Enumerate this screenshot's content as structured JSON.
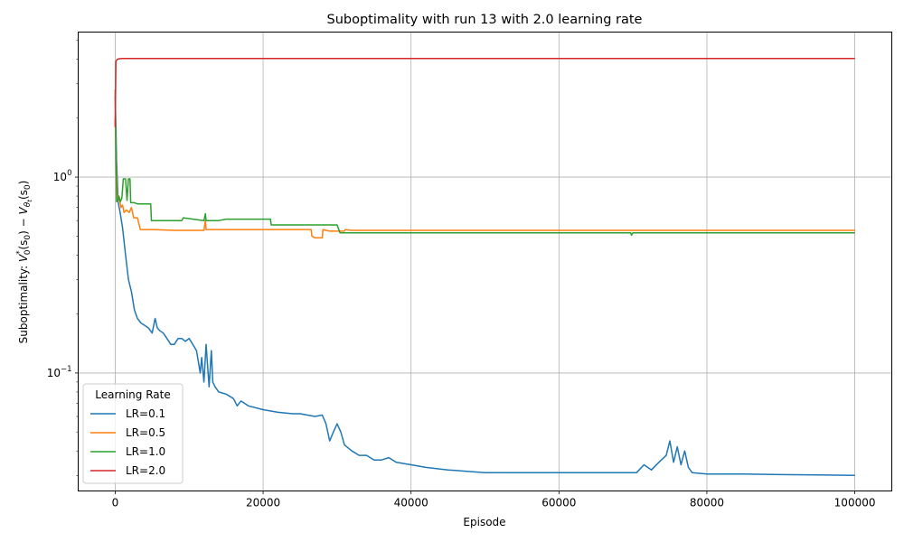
{
  "chart_data": {
    "type": "line",
    "title": "Suboptimality with run 13 with 2.0 learning rate",
    "xlabel": "Episode",
    "ylabel": "Suboptimality: V_0^*(s_0) − V_{θ_t}(s_0)",
    "ylabel_parts": {
      "prefix": "Suboptimality: ",
      "v": "V",
      "v_sup": "*",
      "v_sub": "0",
      "arg1": "(s",
      "arg1_sub": "0",
      "close1": ")",
      "minus": " − ",
      "v2": "V",
      "v2_sub": "θ",
      "v2_subsub": "t",
      "arg2": "(s",
      "arg2_sub": "0",
      "close2": ")"
    },
    "x_scale": "linear",
    "y_scale": "log",
    "xlim": [
      -5000,
      105000
    ],
    "ylim": [
      0.025,
      5.5
    ],
    "x_ticks": [
      0,
      20000,
      40000,
      60000,
      80000,
      100000
    ],
    "x_tick_labels": [
      "0",
      "20000",
      "40000",
      "60000",
      "80000",
      "100000"
    ],
    "y_ticks": [
      0.1,
      1
    ],
    "y_tick_labels": [
      {
        "base": "10",
        "exp": "−1"
      },
      {
        "base": "10",
        "exp": "0"
      }
    ],
    "grid": true,
    "legend": {
      "title": "Learning Rate",
      "placement": "lower-left"
    },
    "series": [
      {
        "name": "LR=0.1",
        "color": "#1f77b4",
        "x": [
          0,
          200,
          400,
          700,
          1000,
          1400,
          1800,
          2200,
          2600,
          3000,
          3500,
          4000,
          4500,
          5000,
          5400,
          5700,
          6000,
          6500,
          7000,
          7500,
          8000,
          8500,
          9000,
          9500,
          10000,
          10500,
          11000,
          11500,
          11700,
          12000,
          12300,
          12700,
          13000,
          13200,
          13500,
          14000,
          15000,
          16000,
          16500,
          17000,
          18000,
          20000,
          22000,
          24000,
          25000,
          26000,
          27000,
          28000,
          28500,
          29000,
          29500,
          30000,
          30500,
          31000,
          32000,
          33000,
          34000,
          35000,
          36000,
          37000,
          38000,
          40000,
          42000,
          45000,
          50000,
          55000,
          60000,
          65000,
          69000,
          70500,
          71500,
          72500,
          73500,
          74500,
          75000,
          75500,
          76000,
          76500,
          77000,
          77500,
          78000,
          80000,
          85000,
          90000,
          95000,
          100000
        ],
        "values": [
          2.6,
          1.2,
          0.75,
          0.65,
          0.55,
          0.4,
          0.3,
          0.26,
          0.21,
          0.19,
          0.18,
          0.175,
          0.17,
          0.16,
          0.19,
          0.17,
          0.165,
          0.16,
          0.15,
          0.14,
          0.14,
          0.15,
          0.15,
          0.145,
          0.15,
          0.14,
          0.13,
          0.1,
          0.12,
          0.09,
          0.14,
          0.085,
          0.13,
          0.09,
          0.085,
          0.08,
          0.078,
          0.074,
          0.068,
          0.072,
          0.068,
          0.065,
          0.063,
          0.062,
          0.062,
          0.061,
          0.06,
          0.061,
          0.055,
          0.045,
          0.05,
          0.055,
          0.05,
          0.043,
          0.04,
          0.038,
          0.038,
          0.036,
          0.036,
          0.037,
          0.035,
          0.034,
          0.033,
          0.032,
          0.031,
          0.031,
          0.031,
          0.031,
          0.031,
          0.031,
          0.034,
          0.032,
          0.035,
          0.038,
          0.045,
          0.035,
          0.042,
          0.034,
          0.04,
          0.033,
          0.031,
          0.0305,
          0.0305,
          0.0303,
          0.0302,
          0.03
        ]
      },
      {
        "name": "LR=0.5",
        "color": "#ff7f0e",
        "x": [
          0,
          150,
          300,
          500,
          800,
          1000,
          1200,
          1500,
          1900,
          2200,
          2500,
          3000,
          3200,
          3400,
          5000,
          8000,
          10000,
          12000,
          12200,
          12300,
          14000,
          20000,
          26500,
          26600,
          27000,
          28000,
          28100,
          28500,
          29000,
          30000,
          30400,
          31000,
          31100,
          32000,
          40000,
          60000,
          68000,
          70000,
          80000,
          100000
        ],
        "values": [
          2.0,
          1.2,
          0.75,
          0.8,
          0.7,
          0.72,
          0.66,
          0.68,
          0.66,
          0.7,
          0.62,
          0.62,
          0.58,
          0.54,
          0.54,
          0.535,
          0.535,
          0.535,
          0.6,
          0.54,
          0.54,
          0.54,
          0.54,
          0.5,
          0.49,
          0.49,
          0.54,
          0.535,
          0.53,
          0.53,
          0.53,
          0.53,
          0.54,
          0.535,
          0.535,
          0.535,
          0.535,
          0.535,
          0.535,
          0.535
        ]
      },
      {
        "name": "LR=1.0",
        "color": "#2ca02c",
        "x": [
          0,
          100,
          200,
          350,
          500,
          700,
          900,
          1100,
          1200,
          1400,
          1600,
          1800,
          2000,
          2100,
          2300,
          2600,
          3000,
          4000,
          4800,
          4900,
          5000,
          7000,
          9000,
          9200,
          12000,
          12200,
          12300,
          14000,
          15000,
          18000,
          21000,
          21100,
          25000,
          30000,
          30400,
          40000,
          50000,
          60000,
          69700,
          69800,
          70000,
          80000,
          100000
        ],
        "values": [
          2.8,
          1.4,
          0.75,
          0.76,
          0.8,
          0.75,
          0.78,
          0.98,
          0.98,
          0.98,
          0.76,
          0.98,
          0.98,
          0.74,
          0.74,
          0.74,
          0.73,
          0.73,
          0.73,
          0.6,
          0.6,
          0.6,
          0.6,
          0.62,
          0.6,
          0.65,
          0.6,
          0.6,
          0.61,
          0.61,
          0.61,
          0.57,
          0.57,
          0.57,
          0.52,
          0.52,
          0.52,
          0.52,
          0.52,
          0.505,
          0.52,
          0.52,
          0.52
        ]
      },
      {
        "name": "LR=2.0",
        "color": "#d62728",
        "x": [
          0,
          100,
          300,
          600,
          1000,
          5000,
          20000,
          50000,
          80000,
          100000
        ],
        "values": [
          1.8,
          3.9,
          4.0,
          4.02,
          4.03,
          4.03,
          4.03,
          4.03,
          4.03,
          4.03
        ]
      }
    ]
  }
}
